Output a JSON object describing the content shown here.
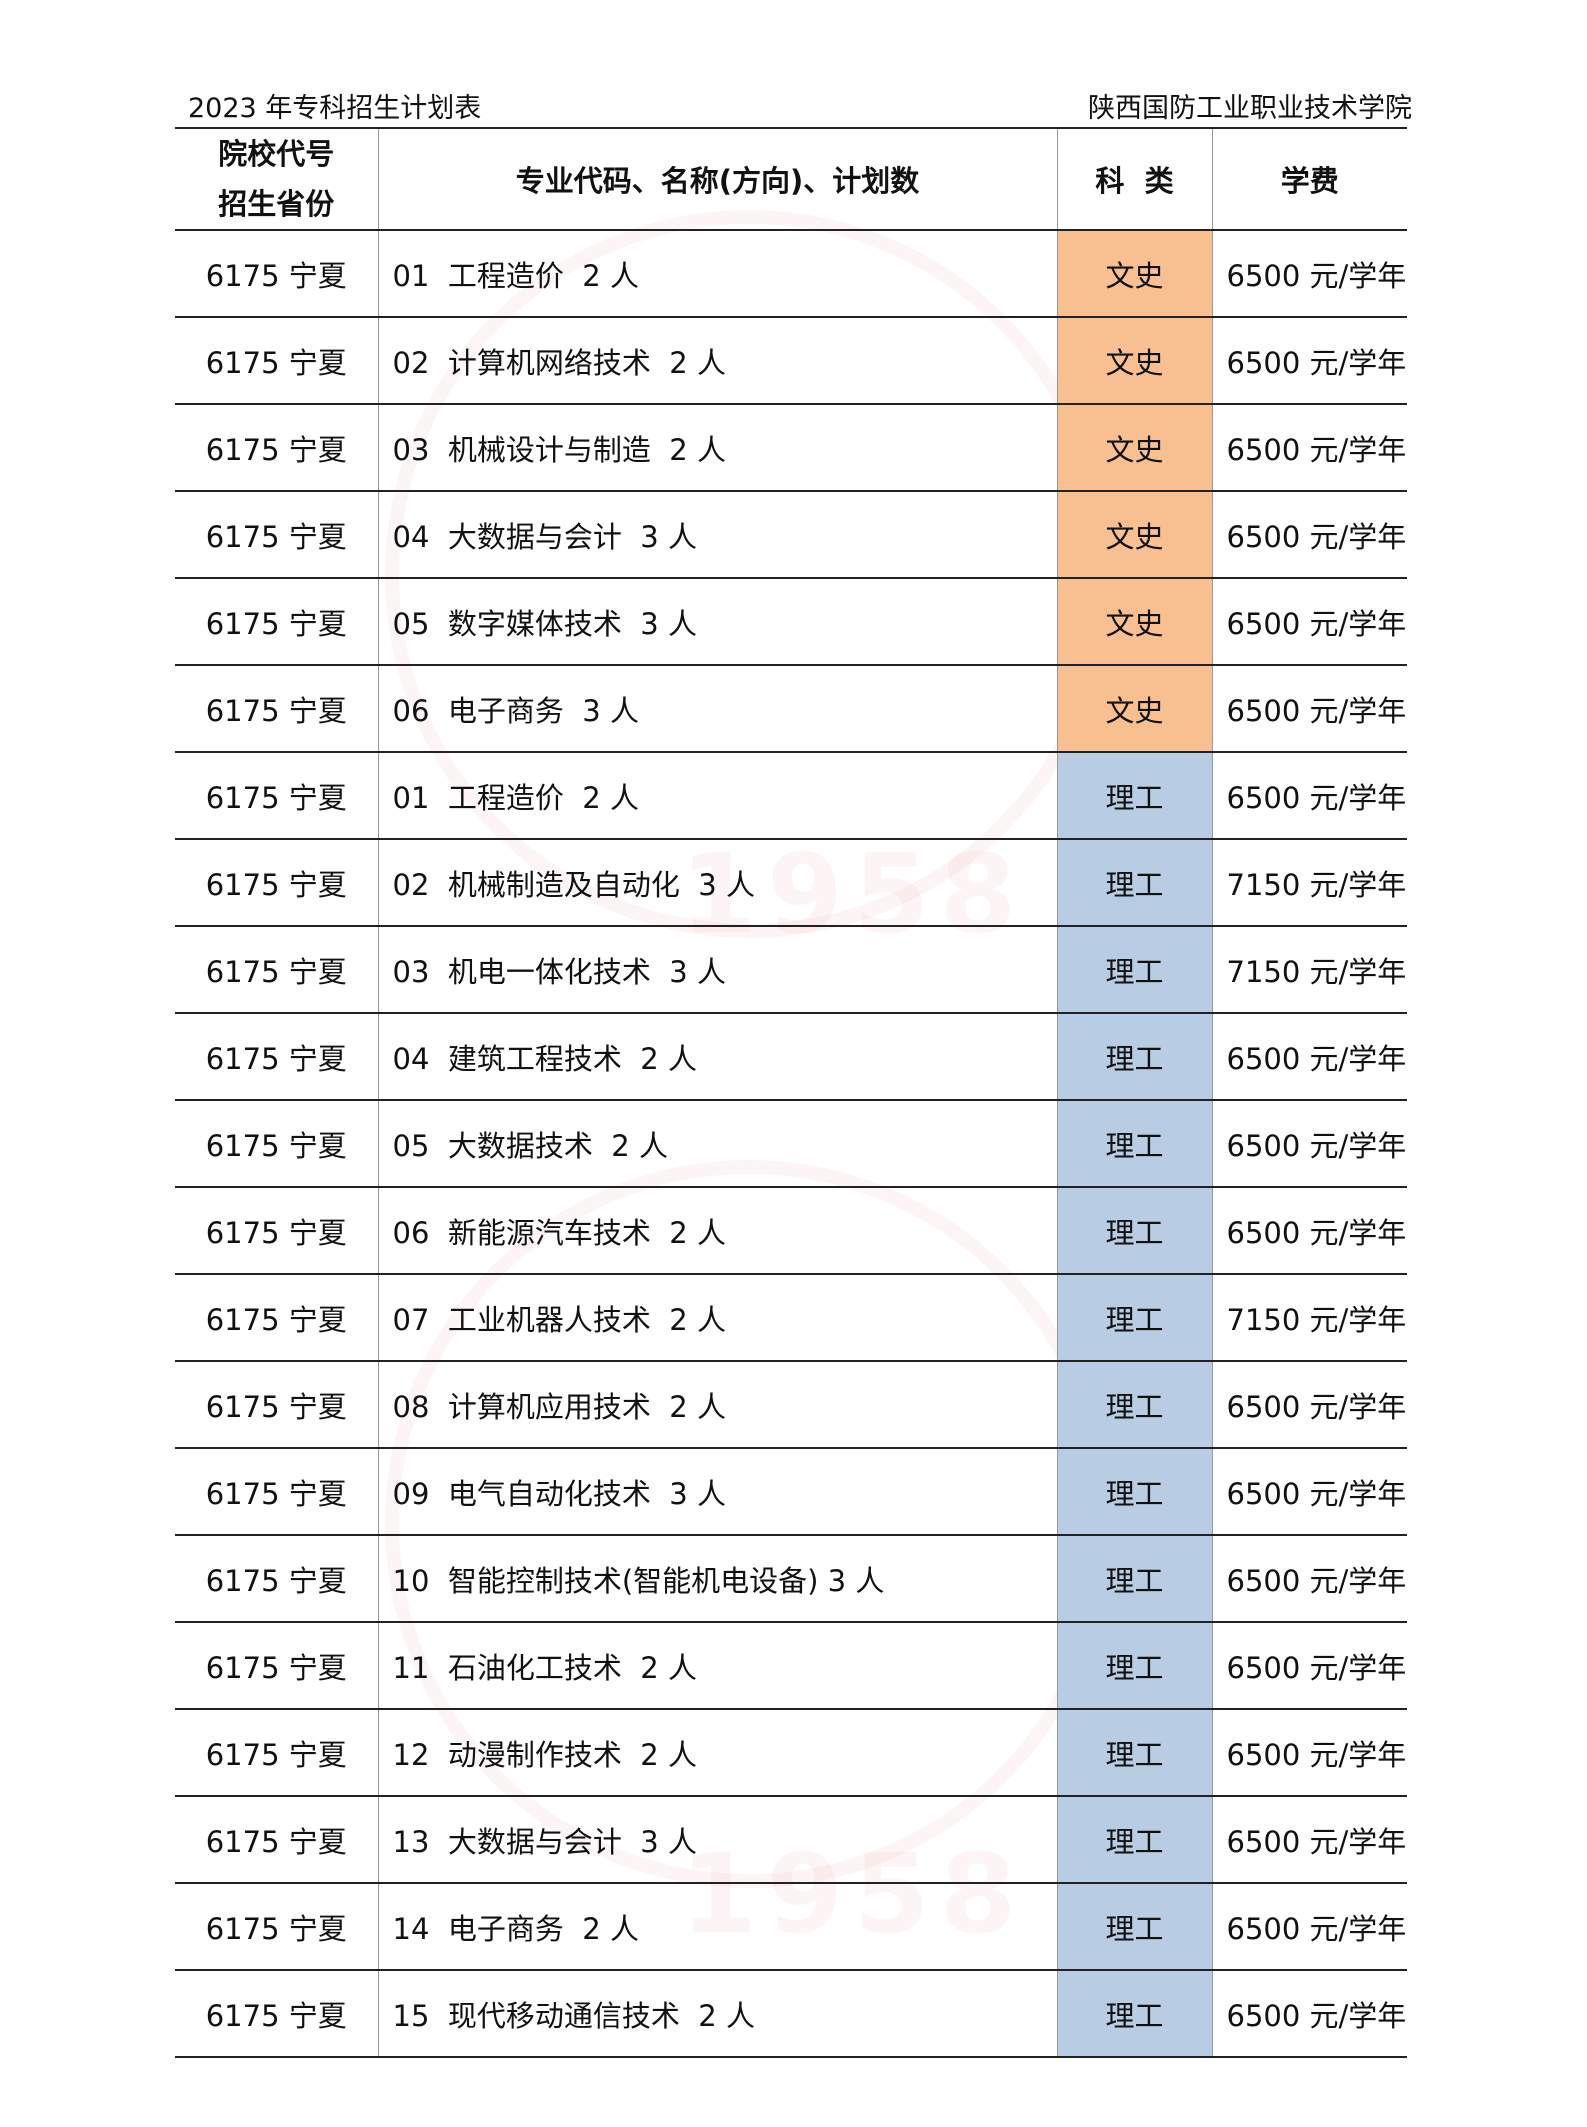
{
  "page": {
    "title_left": "2023 年专科招生计划表",
    "title_right": "陕西国防工业职业技术学院",
    "watermark_text": "1958"
  },
  "table": {
    "headers": [
      "院校代号",
      "招生省份",
      "专业代码、名称(方向)、计划数",
      "科  类",
      "学费"
    ],
    "category_colors": {
      "文史": "#F8C090",
      "理工": "#B8CCE4"
    },
    "rows": [
      {
        "code": "6175  宁夏",
        "major": "01  工程造价  2 人",
        "category": "文史",
        "fee": "6500 元/学年"
      },
      {
        "code": "6175  宁夏",
        "major": "02  计算机网络技术  2 人",
        "category": "文史",
        "fee": "6500 元/学年"
      },
      {
        "code": "6175  宁夏",
        "major": "03  机械设计与制造  2 人",
        "category": "文史",
        "fee": "6500 元/学年"
      },
      {
        "code": "6175  宁夏",
        "major": "04  大数据与会计  3 人",
        "category": "文史",
        "fee": "6500 元/学年"
      },
      {
        "code": "6175  宁夏",
        "major": "05  数字媒体技术  3 人",
        "category": "文史",
        "fee": "6500 元/学年"
      },
      {
        "code": "6175  宁夏",
        "major": "06  电子商务  3 人",
        "category": "文史",
        "fee": "6500 元/学年"
      },
      {
        "code": "6175  宁夏",
        "major": "01  工程造价  2 人",
        "category": "理工",
        "fee": "6500 元/学年"
      },
      {
        "code": "6175  宁夏",
        "major": "02  机械制造及自动化  3 人",
        "category": "理工",
        "fee": "7150 元/学年"
      },
      {
        "code": "6175  宁夏",
        "major": "03  机电一体化技术  3 人",
        "category": "理工",
        "fee": "7150 元/学年"
      },
      {
        "code": "6175  宁夏",
        "major": "04  建筑工程技术  2 人",
        "category": "理工",
        "fee": "6500 元/学年"
      },
      {
        "code": "6175  宁夏",
        "major": "05  大数据技术  2 人",
        "category": "理工",
        "fee": "6500 元/学年"
      },
      {
        "code": "6175  宁夏",
        "major": "06  新能源汽车技术  2 人",
        "category": "理工",
        "fee": "6500 元/学年"
      },
      {
        "code": "6175  宁夏",
        "major": "07  工业机器人技术  2 人",
        "category": "理工",
        "fee": "7150 元/学年"
      },
      {
        "code": "6175  宁夏",
        "major": "08  计算机应用技术  2 人",
        "category": "理工",
        "fee": "6500 元/学年"
      },
      {
        "code": "6175  宁夏",
        "major": "09  电气自动化技术  3 人",
        "category": "理工",
        "fee": "6500 元/学年"
      },
      {
        "code": "6175  宁夏",
        "major": "10  智能控制技术(智能机电设备) 3 人",
        "category": "理工",
        "fee": "6500 元/学年"
      },
      {
        "code": "6175  宁夏",
        "major": "11  石油化工技术  2 人",
        "category": "理工",
        "fee": "6500 元/学年"
      },
      {
        "code": "6175  宁夏",
        "major": "12  动漫制作技术  2 人",
        "category": "理工",
        "fee": "6500 元/学年"
      },
      {
        "code": "6175  宁夏",
        "major": "13  大数据与会计  3 人",
        "category": "理工",
        "fee": "6500 元/学年"
      },
      {
        "code": "6175  宁夏",
        "major": "14  电子商务  2 人",
        "category": "理工",
        "fee": "6500 元/学年"
      },
      {
        "code": "6175  宁夏",
        "major": "15  现代移动通信技术  2 人",
        "category": "理工",
        "fee": "6500 元/学年"
      }
    ]
  }
}
